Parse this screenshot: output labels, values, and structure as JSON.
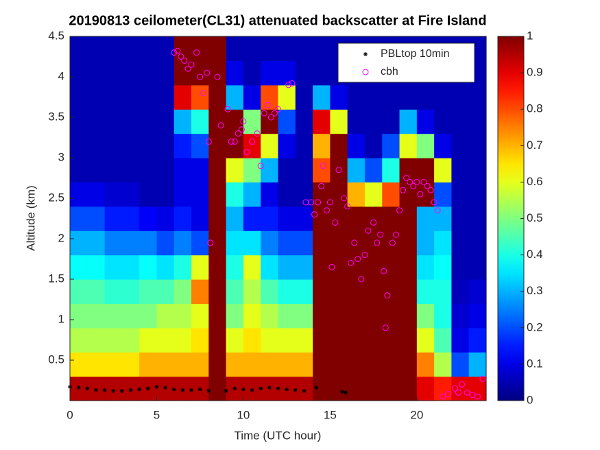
{
  "chart_data": {
    "type": "heatmap",
    "title": "20190813 ceilometer(CL31) attenuated backscatter at Fire Island",
    "xlabel": "Time (UTC hour)",
    "ylabel": "Altitude (km)",
    "xlim": [
      0,
      24
    ],
    "xticks": [
      0,
      5,
      10,
      15,
      20
    ],
    "ylim": [
      0,
      4.5
    ],
    "yticks": [
      0.5,
      1,
      1.5,
      2,
      2.5,
      3,
      3.5,
      4,
      4.5
    ],
    "clim": [
      0,
      1
    ],
    "cticks": [
      0,
      0.1,
      0.2,
      0.3,
      0.4,
      0.5,
      0.6,
      0.7,
      0.8,
      0.9,
      1
    ],
    "colormap": "jet",
    "legend": "upper right",
    "xbins": [
      0,
      1,
      2,
      3,
      4,
      5,
      6,
      7,
      8,
      9,
      10,
      11,
      12,
      13,
      14,
      15,
      16,
      17,
      18,
      19,
      20,
      21,
      22,
      23,
      24
    ],
    "ybins": [
      0,
      0.3,
      0.6,
      0.9,
      1.2,
      1.5,
      1.8,
      2.1,
      2.4,
      2.7,
      3,
      3.3,
      3.6,
      3.9,
      4.2,
      4.5
    ],
    "z": [
      [
        0.95,
        0.65,
        0.55,
        0.5,
        0.45,
        0.38,
        0.3,
        0.2,
        0.1,
        0.05,
        0.05,
        0.05,
        0.05,
        0.05,
        0.05
      ],
      [
        0.95,
        0.65,
        0.55,
        0.5,
        0.45,
        0.38,
        0.3,
        0.2,
        0.1,
        0.05,
        0.05,
        0.05,
        0.05,
        0.05,
        0.05
      ],
      [
        0.95,
        0.65,
        0.55,
        0.5,
        0.42,
        0.35,
        0.25,
        0.15,
        0.08,
        0.05,
        0.05,
        0.05,
        0.05,
        0.05,
        0.05
      ],
      [
        0.95,
        0.65,
        0.55,
        0.5,
        0.42,
        0.35,
        0.25,
        0.15,
        0.08,
        0.05,
        0.05,
        0.05,
        0.05,
        0.05,
        0.05
      ],
      [
        0.95,
        0.7,
        0.6,
        0.5,
        0.45,
        0.38,
        0.25,
        0.12,
        0.05,
        0.05,
        0.05,
        0.05,
        0.05,
        0.05,
        0.05
      ],
      [
        0.95,
        0.7,
        0.6,
        0.55,
        0.45,
        0.35,
        0.2,
        0.1,
        0.05,
        0.05,
        0.05,
        0.05,
        0.05,
        0.05,
        0.05
      ],
      [
        0.95,
        0.7,
        0.6,
        0.55,
        0.5,
        0.4,
        0.25,
        0.15,
        0.1,
        0.1,
        0.15,
        0.3,
        0.9,
        1,
        1
      ],
      [
        0.95,
        0.7,
        0.65,
        0.6,
        0.75,
        0.6,
        0.2,
        0.1,
        0.1,
        0.1,
        0.2,
        0.4,
        0.8,
        1,
        1
      ],
      [
        1,
        1,
        1,
        1,
        1,
        1,
        1,
        1,
        1,
        1,
        1,
        1,
        1,
        1,
        1
      ],
      [
        0.95,
        0.7,
        0.6,
        0.5,
        0.45,
        0.4,
        0.35,
        0.3,
        0.4,
        0.6,
        1,
        1,
        0.3,
        0.1,
        0.05
      ],
      [
        0.95,
        0.7,
        0.65,
        0.6,
        0.55,
        0.6,
        0.35,
        0.15,
        0.3,
        0.5,
        0.9,
        0.5,
        0.1,
        0.05,
        0.05
      ],
      [
        0.95,
        0.7,
        0.6,
        0.55,
        0.45,
        0.35,
        0.25,
        0.15,
        0.1,
        0.3,
        0.6,
        1,
        0.8,
        0.1,
        0.05
      ],
      [
        0.95,
        0.7,
        0.6,
        0.5,
        0.4,
        0.3,
        0.2,
        0.1,
        0.05,
        0.05,
        0.1,
        0.2,
        0.6,
        0.1,
        0.05
      ],
      [
        0.95,
        0.7,
        0.6,
        0.5,
        0.4,
        0.3,
        0.2,
        0.1,
        0.05,
        0.05,
        0.05,
        0.05,
        0.05,
        0.05,
        0.05
      ],
      [
        1,
        1,
        1,
        1,
        1,
        1,
        1,
        1,
        1,
        0.8,
        0.7,
        0.9,
        0.3,
        0.05,
        0.05
      ],
      [
        1,
        1,
        1,
        1,
        1,
        1,
        1,
        1,
        1,
        1,
        1,
        0.6,
        0.1,
        0.05,
        0.05
      ],
      [
        1,
        1,
        1,
        1,
        1,
        1,
        1,
        1,
        0.7,
        0.3,
        0.1,
        0.05,
        0.05,
        0.05,
        0.05
      ],
      [
        1,
        1,
        1,
        1,
        1,
        1,
        1,
        1,
        0.6,
        0.2,
        0.05,
        0.05,
        0.05,
        0.05,
        0.05
      ],
      [
        1,
        1,
        1,
        1,
        1,
        1,
        1,
        1,
        0.8,
        0.4,
        0.2,
        0.05,
        0.05,
        0.05,
        0.05
      ],
      [
        1,
        1,
        1,
        1,
        1,
        1,
        1,
        1,
        1,
        1,
        0.6,
        0.3,
        0.05,
        0.05,
        0.05
      ],
      [
        0.9,
        0.75,
        0.6,
        0.5,
        0.4,
        0.35,
        0.3,
        0.3,
        1,
        1,
        0.5,
        0.1,
        0.05,
        0.05,
        0.05
      ],
      [
        0.85,
        0.55,
        0.45,
        0.4,
        0.4,
        0.38,
        0.35,
        0.3,
        0.2,
        0.6,
        0.1,
        0.05,
        0.05,
        0.05,
        0.05
      ],
      [
        0.9,
        0.2,
        0.1,
        0.08,
        0.06,
        0.05,
        0.05,
        0.05,
        0.05,
        0.05,
        0.05,
        0.05,
        0.05,
        0.05,
        0.05
      ],
      [
        0.9,
        0.3,
        0.15,
        0.1,
        0.08,
        0.05,
        0.05,
        0.05,
        0.05,
        0.05,
        0.05,
        0.05,
        0.05,
        0.05,
        0.05
      ]
    ],
    "series": [
      {
        "name": "PBLtop 10min",
        "color": "#000000",
        "marker": "star",
        "x": [
          0,
          0.5,
          1,
          1.5,
          2,
          2.5,
          3,
          3.5,
          4,
          4.5,
          5,
          5.5,
          6,
          6.5,
          7,
          7.5,
          8,
          9,
          9.5,
          10,
          10.5,
          11,
          11.5,
          12,
          12.5,
          13,
          13.5,
          14.2,
          15.7,
          15.9
        ],
        "values": [
          0.17,
          0.16,
          0.15,
          0.13,
          0.13,
          0.12,
          0.12,
          0.13,
          0.14,
          0.15,
          0.17,
          0.16,
          0.14,
          0.13,
          0.13,
          0.14,
          0.12,
          0.12,
          0.15,
          0.14,
          0.13,
          0.15,
          0.16,
          0.15,
          0.14,
          0.13,
          0.12,
          0.16,
          0.11,
          0.1
        ]
      },
      {
        "name": "cbh",
        "color": "#ff00ff",
        "marker": "circle",
        "x": [
          6.0,
          6.2,
          6.4,
          6.6,
          6.8,
          7.0,
          7.3,
          7.5,
          7.7,
          7.9,
          8.0,
          8.1,
          8.5,
          8.7,
          9.1,
          9.3,
          9.5,
          9.7,
          9.9,
          10.0,
          10.2,
          10.5,
          10.8,
          11.0,
          11.2,
          11.4,
          11.6,
          11.8,
          12.0,
          12.6,
          12.8,
          13.6,
          13.9,
          14.1,
          14.3,
          14.5,
          14.6,
          14.8,
          15.0,
          15.1,
          15.3,
          15.5,
          15.8,
          16.0,
          16.2,
          16.4,
          16.6,
          16.8,
          17.0,
          17.2,
          17.5,
          17.7,
          17.9,
          18.1,
          18.2,
          18.3,
          18.6,
          18.8,
          19.0,
          19.2,
          19.4,
          19.6,
          19.8,
          20.0,
          20.2,
          20.4,
          20.6,
          20.8,
          21.0,
          21.2,
          21.5,
          21.8,
          22.2,
          22.4,
          22.6,
          22.9,
          23.2,
          23.5,
          23.8
        ],
        "values": [
          4.3,
          4.32,
          4.25,
          4.2,
          4.1,
          4.15,
          4.3,
          4.0,
          3.8,
          4.05,
          3.2,
          1.95,
          4.0,
          3.4,
          3.6,
          3.2,
          3.2,
          3.3,
          3.35,
          3.45,
          3.07,
          3.2,
          3.3,
          2.9,
          3.55,
          3.65,
          3.5,
          3.55,
          3.6,
          3.9,
          3.92,
          2.45,
          2.45,
          2.3,
          2.45,
          2.65,
          2.9,
          2.35,
          2.45,
          1.65,
          2.2,
          2.85,
          2.5,
          2.4,
          1.7,
          1.95,
          1.75,
          1.5,
          1.8,
          2.1,
          2.2,
          1.95,
          2.05,
          1.6,
          0.9,
          1.3,
          1.95,
          2.05,
          2.35,
          2.6,
          2.75,
          2.7,
          2.65,
          2.7,
          2.55,
          2.7,
          2.65,
          2.6,
          2.45,
          2.35,
          0.05,
          0.08,
          0.15,
          0.1,
          0.2,
          0.1,
          0.07,
          0.05,
          0.27
        ]
      }
    ]
  }
}
